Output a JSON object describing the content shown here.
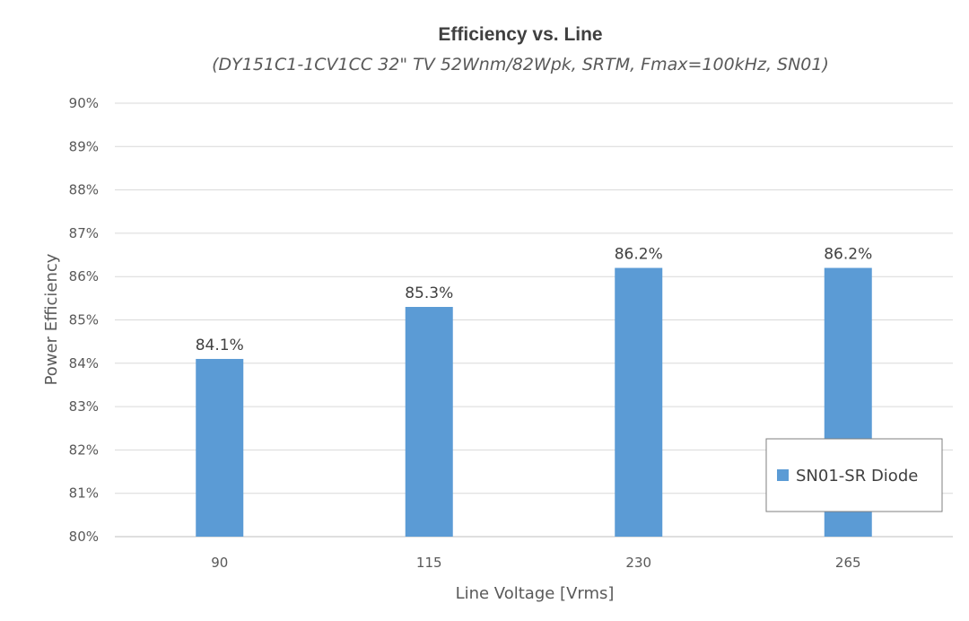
{
  "chart_data": {
    "type": "bar",
    "title": "Efficiency vs. Line",
    "subtitle": "(DY151C1-1CV1CC 32\" TV 52Wnm/82Wpk, SRTM, Fmax=100kHz, SN01)",
    "xlabel": "Line Voltage [Vrms]",
    "ylabel": "Power Efficiency",
    "categories": [
      "90",
      "115",
      "230",
      "265"
    ],
    "series": [
      {
        "name": "SN01-SR Diode",
        "values": [
          84.1,
          85.3,
          86.2,
          86.2
        ],
        "labels": [
          "84.1%",
          "85.3%",
          "86.2%",
          "86.2%"
        ],
        "color": "#5B9BD5"
      }
    ],
    "ylim": [
      80,
      90
    ],
    "yticks": [
      80,
      81,
      82,
      83,
      84,
      85,
      86,
      87,
      88,
      89,
      90
    ],
    "ytick_labels": [
      "80%",
      "81%",
      "82%",
      "83%",
      "84%",
      "85%",
      "86%",
      "87%",
      "88%",
      "89%",
      "90%"
    ],
    "grid": true,
    "legend_position": "bottom-right"
  },
  "colors": {
    "grid": "#d9d9d9",
    "axis": "#bfbfbf",
    "legend_border": "#7f7f7f"
  }
}
